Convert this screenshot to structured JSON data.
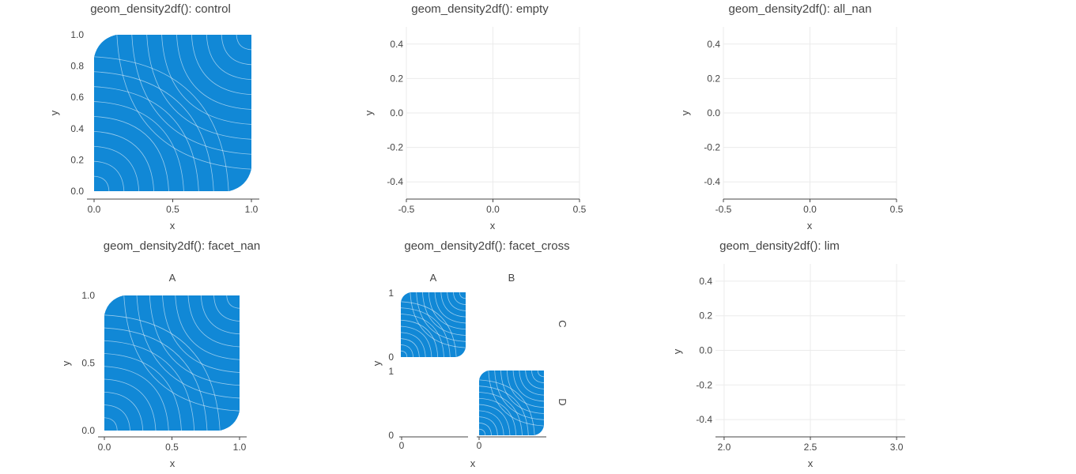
{
  "chart_data": [
    {
      "title": "geom_density2df(): control",
      "type": "density2d-filled",
      "xlabel": "x",
      "ylabel": "y",
      "xlim": [
        0,
        1
      ],
      "ylim": [
        0,
        1
      ],
      "xticks": [
        {
          "v": 0,
          "label": "0.0"
        },
        {
          "v": 0.5,
          "label": "0.5"
        },
        {
          "v": 1,
          "label": "1.0"
        }
      ],
      "yticks": [
        {
          "v": 0,
          "label": "0.0"
        },
        {
          "v": 0.2,
          "label": "0.2"
        },
        {
          "v": 0.4,
          "label": "0.4"
        },
        {
          "v": 0.6,
          "label": "0.6"
        },
        {
          "v": 0.8,
          "label": "0.8"
        },
        {
          "v": 1,
          "label": "1.0"
        }
      ],
      "fill_color": "#1188d6",
      "grid": false
    },
    {
      "title": "geom_density2df(): empty",
      "type": "empty",
      "xlabel": "x",
      "ylabel": "y",
      "xlim": [
        -0.5,
        0.5
      ],
      "ylim": [
        -0.5,
        0.5
      ],
      "xticks": [
        {
          "v": -0.5,
          "label": "-0.5"
        },
        {
          "v": 0,
          "label": "0.0"
        },
        {
          "v": 0.5,
          "label": "0.5"
        }
      ],
      "yticks": [
        {
          "v": -0.4,
          "label": "-0.4"
        },
        {
          "v": -0.2,
          "label": "-0.2"
        },
        {
          "v": 0,
          "label": "0.0"
        },
        {
          "v": 0.2,
          "label": "0.2"
        },
        {
          "v": 0.4,
          "label": "0.4"
        }
      ],
      "grid": true
    },
    {
      "title": "geom_density2df(): all_nan",
      "type": "empty",
      "xlabel": "x",
      "ylabel": "y",
      "xlim": [
        -0.5,
        0.5
      ],
      "ylim": [
        -0.5,
        0.5
      ],
      "xticks": [
        {
          "v": -0.5,
          "label": "-0.5"
        },
        {
          "v": 0,
          "label": "0.0"
        },
        {
          "v": 0.5,
          "label": "0.5"
        }
      ],
      "yticks": [
        {
          "v": -0.4,
          "label": "-0.4"
        },
        {
          "v": -0.2,
          "label": "-0.2"
        },
        {
          "v": 0,
          "label": "0.0"
        },
        {
          "v": 0.2,
          "label": "0.2"
        },
        {
          "v": 0.4,
          "label": "0.4"
        }
      ],
      "grid": true
    },
    {
      "title": "geom_density2df(): facet_nan",
      "type": "density2d-filled",
      "strip": "A",
      "xlabel": "x",
      "ylabel": "y",
      "xlim": [
        0,
        1
      ],
      "ylim": [
        0,
        1
      ],
      "xticks": [
        {
          "v": 0,
          "label": "0.0"
        },
        {
          "v": 0.5,
          "label": "0.5"
        },
        {
          "v": 1,
          "label": "1.0"
        }
      ],
      "yticks": [
        {
          "v": 0,
          "label": "0.0"
        },
        {
          "v": 0.5,
          "label": "0.5"
        },
        {
          "v": 1,
          "label": "1.0"
        }
      ],
      "fill_color": "#1188d6",
      "grid": false
    },
    {
      "title": "geom_density2df(): facet_cross",
      "type": "density2d-filled-facet-grid",
      "col_strips": [
        "A",
        "B"
      ],
      "row_strips": [
        "C",
        "D"
      ],
      "xlabel": "x",
      "ylabel": "y",
      "xticks": [
        {
          "v": 0,
          "label": "0"
        }
      ],
      "yticks": [
        {
          "v": 0,
          "label": "0"
        },
        {
          "v": 1,
          "label": "1"
        }
      ],
      "cells": [
        {
          "col": 0,
          "row": 0,
          "filled": true
        },
        {
          "col": 1,
          "row": 0,
          "filled": false
        },
        {
          "col": 0,
          "row": 1,
          "filled": false
        },
        {
          "col": 1,
          "row": 1,
          "filled": true
        }
      ],
      "fill_color": "#1188d6",
      "grid": false
    },
    {
      "title": "geom_density2df(): lim",
      "type": "empty",
      "xlabel": "x",
      "ylabel": "y",
      "xlim": [
        1.95,
        3.05
      ],
      "ylim": [
        -0.5,
        0.5
      ],
      "xticks": [
        {
          "v": 2.0,
          "label": "2.0"
        },
        {
          "v": 2.5,
          "label": "2.5"
        },
        {
          "v": 3.0,
          "label": "3.0"
        }
      ],
      "yticks": [
        {
          "v": -0.4,
          "label": "-0.4"
        },
        {
          "v": -0.2,
          "label": "-0.2"
        },
        {
          "v": 0,
          "label": "0.0"
        },
        {
          "v": 0.2,
          "label": "0.2"
        },
        {
          "v": 0.4,
          "label": "0.4"
        }
      ],
      "grid": true
    }
  ]
}
